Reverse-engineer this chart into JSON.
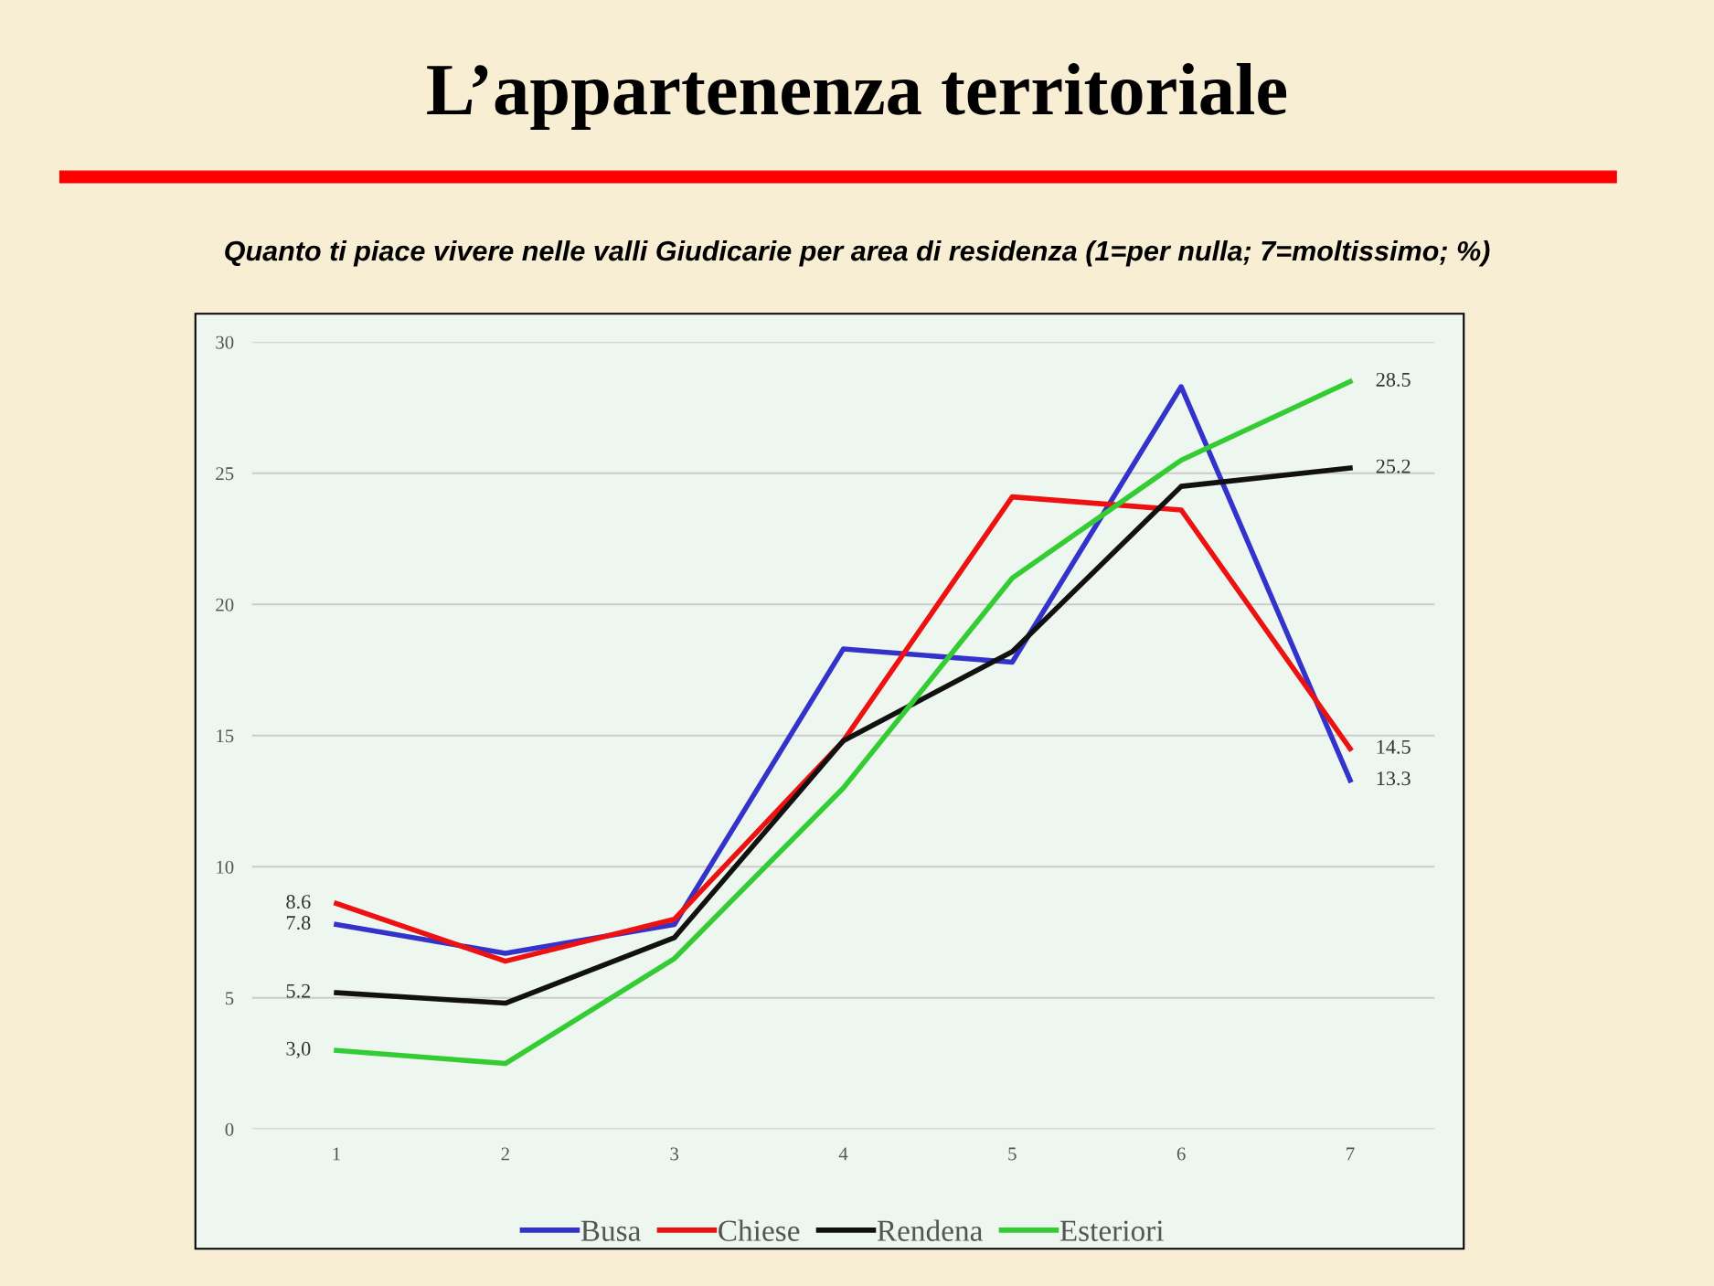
{
  "chart_data": {
    "type": "line",
    "title": "L’appartenenza territoriale",
    "subtitle": "Quanto ti piace vivere nelle valli Giudicarie per area di residenza (1=per nulla; 7=moltissimo; %)",
    "categories": [
      "1",
      "2",
      "3",
      "4",
      "5",
      "6",
      "7"
    ],
    "series": [
      {
        "name": "Busa",
        "color": "#3333cc",
        "values": [
          7.8,
          6.7,
          7.8,
          18.3,
          17.8,
          28.3,
          13.3
        ],
        "value_labels": [
          "7.8",
          null,
          null,
          null,
          null,
          null,
          "13.3"
        ]
      },
      {
        "name": "Chiese",
        "color": "#ee1111",
        "values": [
          8.6,
          6.4,
          8.0,
          14.8,
          24.1,
          23.6,
          14.5
        ],
        "value_labels": [
          "8.6",
          null,
          null,
          null,
          null,
          null,
          "14.5"
        ]
      },
      {
        "name": "Rendena",
        "color": "#111111",
        "values": [
          5.2,
          4.8,
          7.3,
          14.8,
          18.2,
          24.5,
          25.2
        ],
        "value_labels": [
          "5.2",
          null,
          null,
          null,
          null,
          null,
          "25.2"
        ]
      },
      {
        "name": "Esteriori",
        "color": "#33cc33",
        "values": [
          3.0,
          2.5,
          6.5,
          13.0,
          21.0,
          25.5,
          28.5
        ],
        "value_labels": [
          "3,0",
          null,
          null,
          null,
          null,
          null,
          "28.5"
        ]
      }
    ],
    "ylim": [
      0,
      30
    ],
    "yticks": [
      0,
      5,
      10,
      15,
      20,
      25,
      30
    ],
    "grid": "y",
    "legend": "bottom",
    "marker": "none",
    "line_style": "solid"
  }
}
